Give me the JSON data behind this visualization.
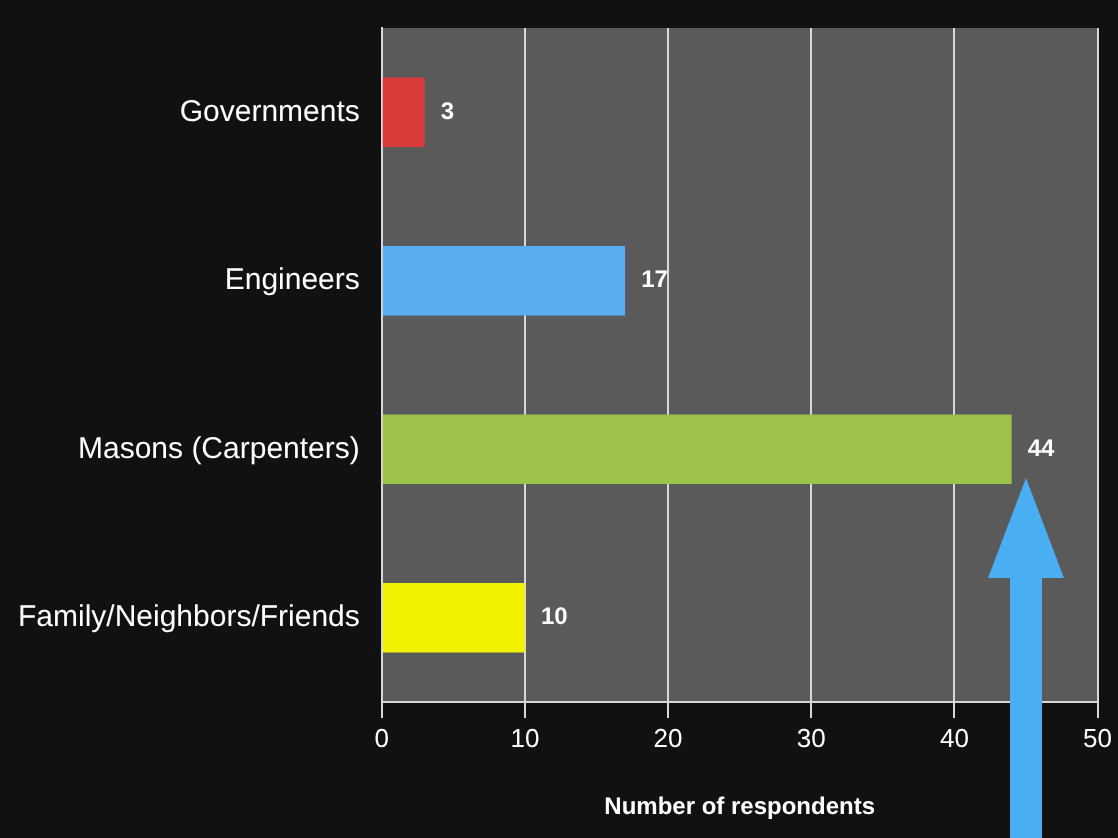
{
  "chart_data": {
    "type": "bar",
    "orientation": "horizontal",
    "xlabel": "Number of respondents",
    "categories": [
      "Governments",
      "Engineers",
      "Masons (Carpenters)",
      "Family/Neighbors/Friends"
    ],
    "values": [
      3,
      17,
      44,
      10
    ],
    "colors": [
      "#d93a3a",
      "#5aaef0",
      "#9cc24a",
      "#f2f200"
    ],
    "xlim": [
      0,
      50
    ],
    "xticks": [
      0,
      10,
      20,
      30,
      40,
      50
    ],
    "grid": "x",
    "data_labels": true,
    "legend": false
  }
}
